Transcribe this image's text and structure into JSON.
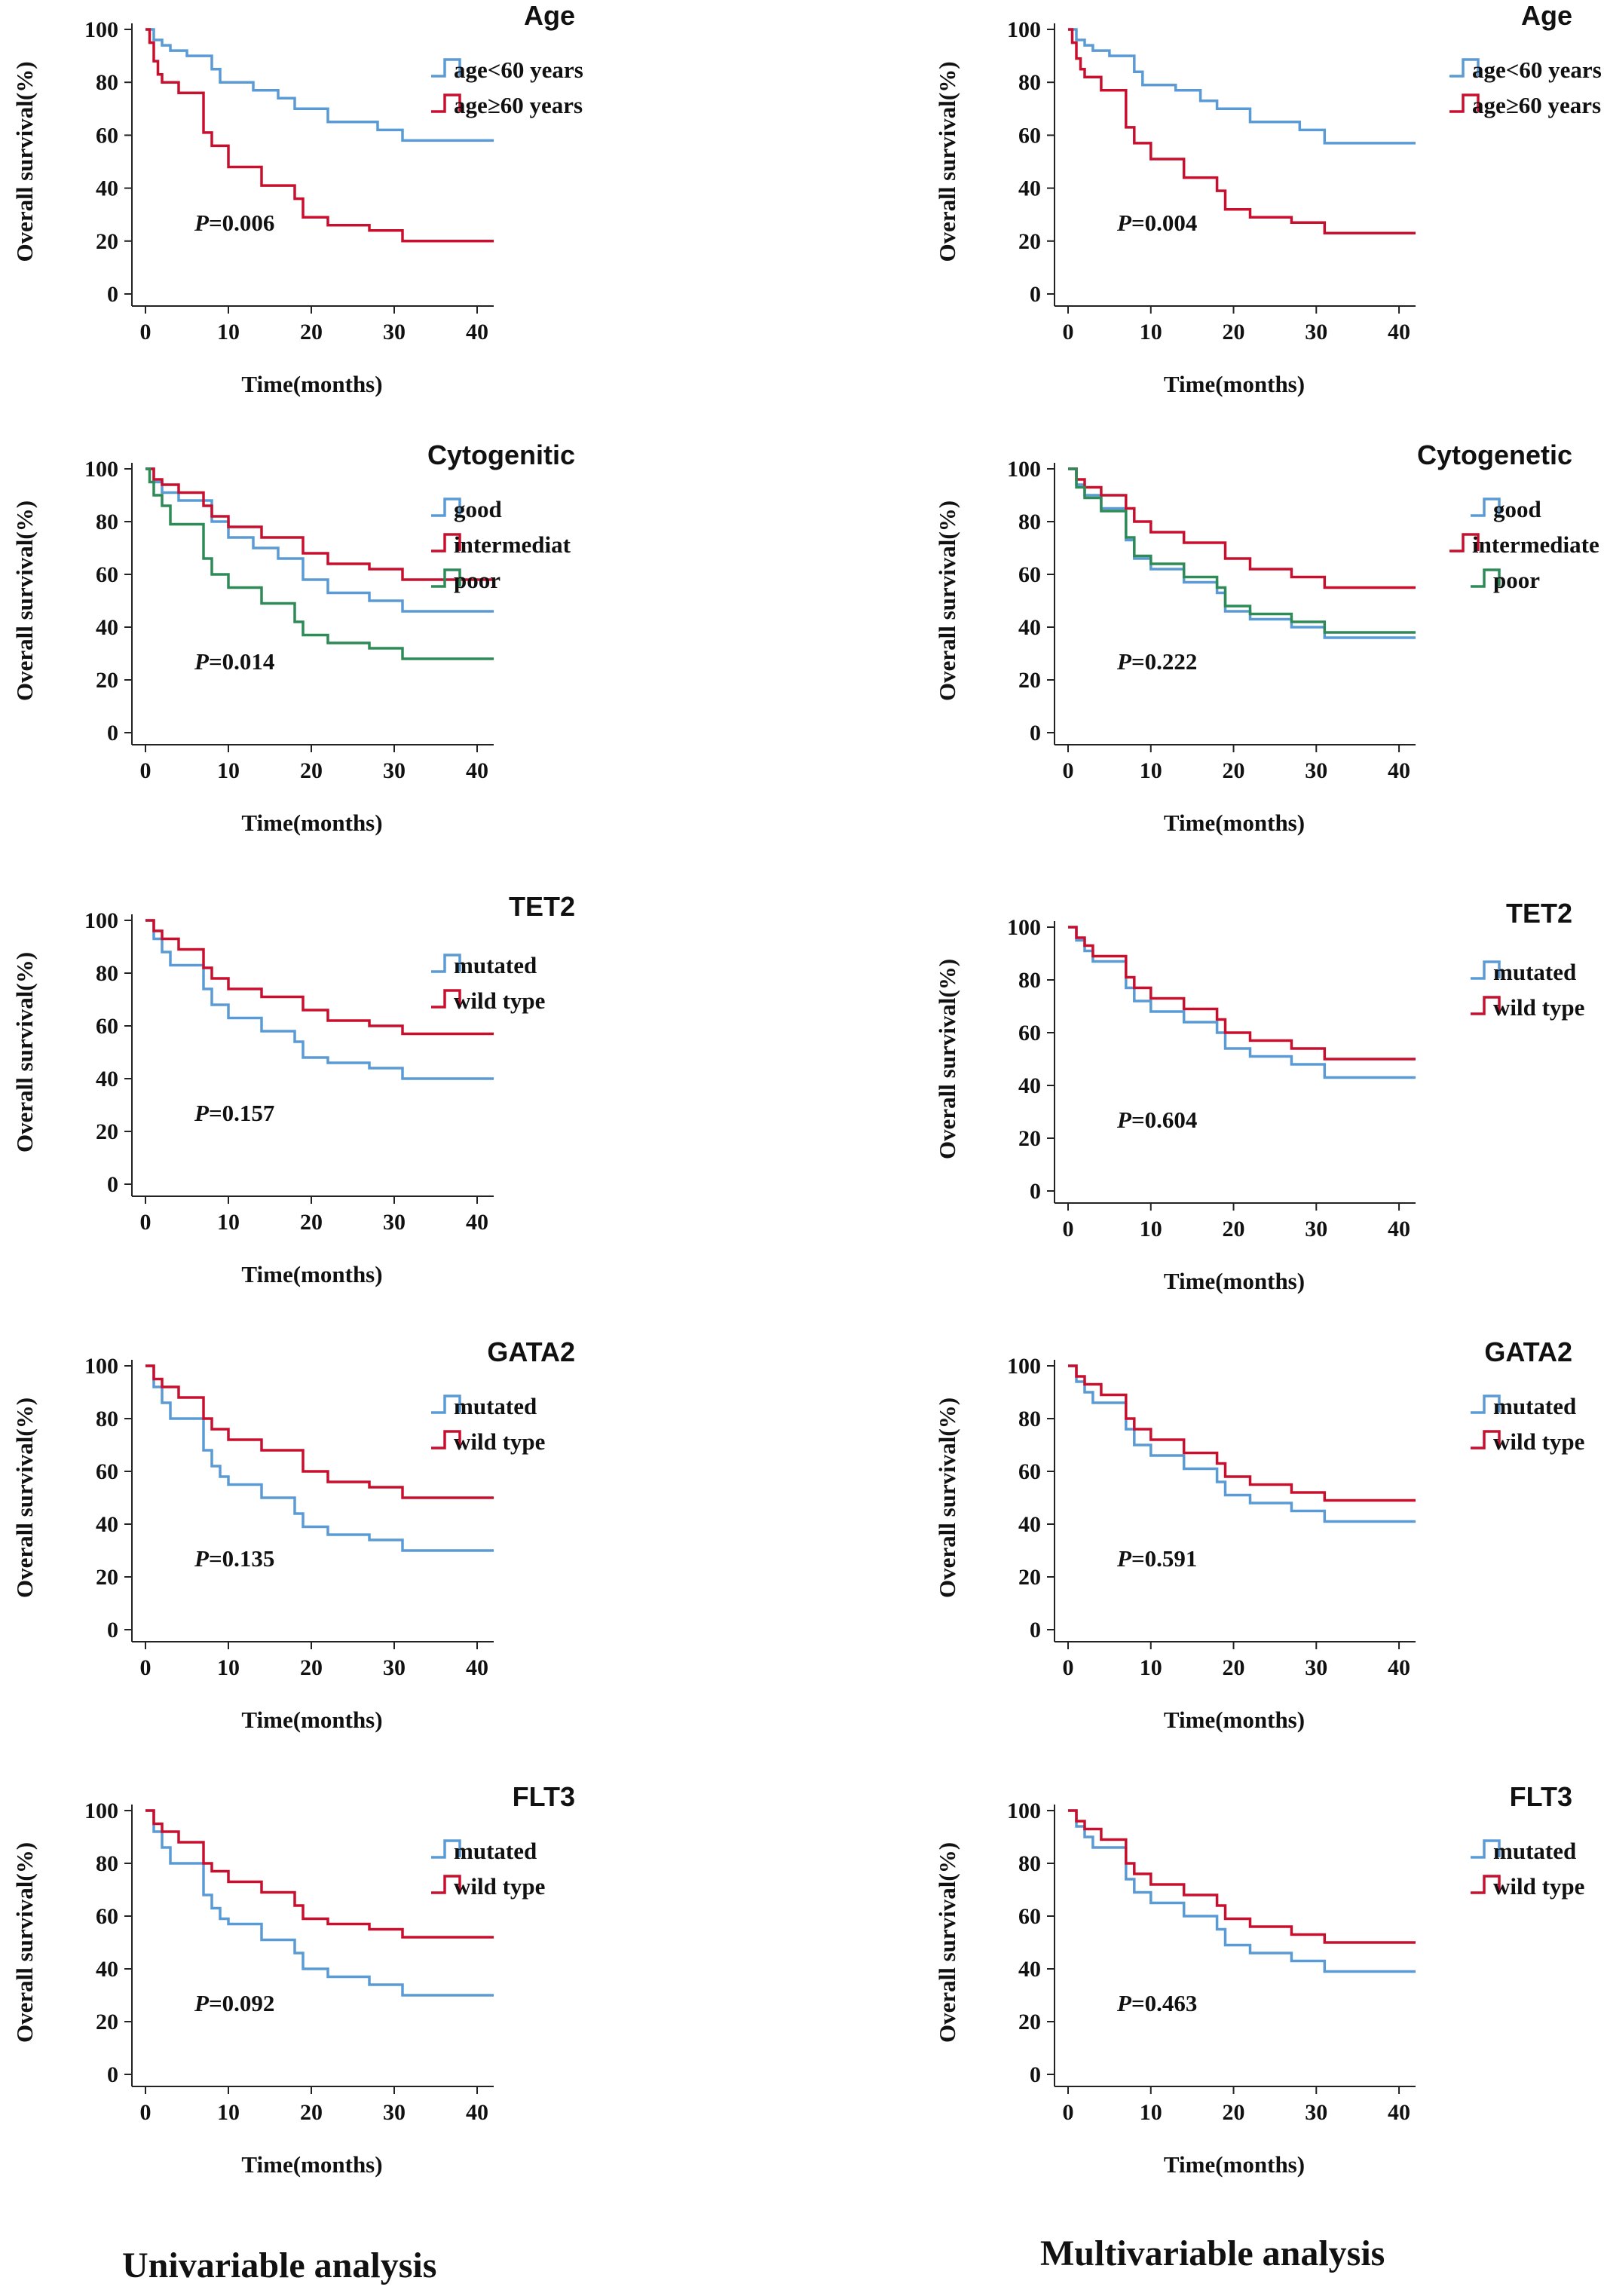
{
  "column_titles": {
    "left": "Univariable analysis",
    "right": "Multivariable analysis"
  },
  "colors": {
    "blue": "#5B9BD5",
    "red": "#C8102E",
    "green": "#2E8B57",
    "axis": "#222222"
  },
  "chart_data": [
    {
      "type": "line",
      "panel": "univariable-age",
      "title": "Age",
      "xlabel": "Time(months)",
      "ylabel": "Overall survival(%)",
      "xlim": [
        0,
        42
      ],
      "ylim": [
        0,
        100
      ],
      "xticks": [
        0,
        10,
        20,
        30,
        40
      ],
      "yticks": [
        0,
        20,
        40,
        60,
        80,
        100
      ],
      "grid": false,
      "legend": "top-right",
      "p_label": "P",
      "p_value": "=0.006",
      "series": [
        {
          "name": "age<60 years",
          "color": "blue",
          "x": [
            0,
            1,
            2,
            3,
            5,
            8,
            9,
            13,
            16,
            18,
            22,
            28,
            31,
            42
          ],
          "y": [
            100,
            96,
            94,
            92,
            90,
            85,
            80,
            77,
            74,
            70,
            65,
            62,
            58,
            58
          ]
        },
        {
          "name": "age≥60 years",
          "color": "red",
          "x": [
            0,
            0.5,
            1,
            1.5,
            2,
            4,
            7,
            8,
            10,
            14,
            18,
            19,
            22,
            27,
            31,
            42
          ],
          "y": [
            100,
            95,
            88,
            83,
            80,
            76,
            61,
            56,
            48,
            41,
            36,
            29,
            26,
            24,
            20,
            20
          ]
        }
      ]
    },
    {
      "type": "line",
      "panel": "multivariable-age",
      "title": "Age",
      "xlabel": "Time(months)",
      "ylabel": "Overall survival(%)",
      "xlim": [
        0,
        42
      ],
      "ylim": [
        0,
        100
      ],
      "xticks": [
        0,
        10,
        20,
        30,
        40
      ],
      "yticks": [
        0,
        20,
        40,
        60,
        80,
        100
      ],
      "grid": false,
      "legend": "top-right",
      "p_label": "P",
      "p_value": "=0.004",
      "series": [
        {
          "name": "age<60 years",
          "color": "blue",
          "x": [
            0,
            1,
            2,
            3,
            5,
            8,
            9,
            13,
            16,
            18,
            22,
            28,
            31,
            42
          ],
          "y": [
            100,
            96,
            94,
            92,
            90,
            84,
            79,
            77,
            73,
            70,
            65,
            62,
            57,
            57
          ]
        },
        {
          "name": "age≥60 years",
          "color": "red",
          "x": [
            0,
            0.5,
            1,
            1.5,
            2,
            4,
            7,
            8,
            10,
            14,
            18,
            19,
            22,
            27,
            31,
            42
          ],
          "y": [
            100,
            95,
            89,
            85,
            82,
            77,
            63,
            57,
            51,
            44,
            39,
            32,
            29,
            27,
            23,
            23
          ]
        }
      ]
    },
    {
      "type": "line",
      "panel": "univariable-cytogenetic",
      "title": "Cytogenitic",
      "xlabel": "Time(months)",
      "ylabel": "Overall survival(%)",
      "xlim": [
        0,
        42
      ],
      "ylim": [
        0,
        100
      ],
      "xticks": [
        0,
        10,
        20,
        30,
        40
      ],
      "yticks": [
        0,
        20,
        40,
        60,
        80,
        100
      ],
      "grid": false,
      "legend": "top-right",
      "p_label": "P",
      "p_value": "=0.014",
      "series": [
        {
          "name": "good",
          "color": "blue",
          "x": [
            0,
            1,
            2,
            4,
            8,
            10,
            13,
            16,
            19,
            22,
            27,
            31,
            42
          ],
          "y": [
            100,
            95,
            91,
            88,
            80,
            74,
            70,
            66,
            58,
            53,
            50,
            46,
            46
          ]
        },
        {
          "name": "intermediat",
          "color": "red",
          "x": [
            0,
            1,
            2,
            4,
            7,
            8,
            10,
            14,
            19,
            22,
            27,
            31,
            42
          ],
          "y": [
            100,
            96,
            94,
            91,
            86,
            82,
            78,
            74,
            68,
            64,
            62,
            58,
            58
          ]
        },
        {
          "name": "poor",
          "color": "green",
          "x": [
            0,
            0.5,
            1,
            2,
            3,
            7,
            8,
            10,
            14,
            18,
            19,
            22,
            27,
            31,
            42
          ],
          "y": [
            100,
            95,
            90,
            86,
            79,
            66,
            60,
            55,
            49,
            42,
            37,
            34,
            32,
            28,
            28
          ]
        }
      ]
    },
    {
      "type": "line",
      "panel": "multivariable-cytogenetic",
      "title": "Cytogenetic",
      "xlabel": "Time(months)",
      "ylabel": "Overall survival(%)",
      "xlim": [
        0,
        42
      ],
      "ylim": [
        0,
        100
      ],
      "xticks": [
        0,
        10,
        20,
        30,
        40
      ],
      "yticks": [
        0,
        20,
        40,
        60,
        80,
        100
      ],
      "grid": false,
      "legend": "top-right",
      "p_label": "P",
      "p_value": "=0.222",
      "series": [
        {
          "name": "good",
          "color": "blue",
          "x": [
            0,
            1,
            2,
            4,
            7,
            8,
            10,
            14,
            18,
            19,
            22,
            27,
            31,
            42
          ],
          "y": [
            100,
            94,
            90,
            85,
            73,
            66,
            62,
            57,
            53,
            46,
            43,
            40,
            36,
            36
          ]
        },
        {
          "name": "intermediate",
          "color": "red",
          "x": [
            0,
            1,
            2,
            4,
            7,
            8,
            10,
            14,
            19,
            22,
            27,
            31,
            42
          ],
          "y": [
            100,
            96,
            93,
            90,
            85,
            80,
            76,
            72,
            66,
            62,
            59,
            55,
            55
          ]
        },
        {
          "name": "poor",
          "color": "green",
          "x": [
            0,
            1,
            2,
            4,
            7,
            8,
            10,
            14,
            18,
            19,
            22,
            27,
            31,
            42
          ],
          "y": [
            100,
            93,
            89,
            84,
            74,
            67,
            64,
            59,
            55,
            48,
            45,
            42,
            38,
            38
          ]
        }
      ]
    },
    {
      "type": "line",
      "panel": "univariable-tet2",
      "title": "TET2",
      "xlabel": "Time(months)",
      "ylabel": "Overall survival(%)",
      "xlim": [
        0,
        42
      ],
      "ylim": [
        0,
        100
      ],
      "xticks": [
        0,
        10,
        20,
        30,
        40
      ],
      "yticks": [
        0,
        20,
        40,
        60,
        80,
        100
      ],
      "grid": false,
      "legend": "top-right",
      "p_label": "P",
      "p_value": "=0.157",
      "series": [
        {
          "name": "mutated",
          "color": "blue",
          "x": [
            0,
            1,
            2,
            3,
            7,
            8,
            10,
            14,
            18,
            19,
            22,
            27,
            31,
            42
          ],
          "y": [
            100,
            93,
            88,
            83,
            74,
            68,
            63,
            58,
            54,
            48,
            46,
            44,
            40,
            40
          ]
        },
        {
          "name": "wild type",
          "color": "red",
          "x": [
            0,
            1,
            2,
            4,
            7,
            8,
            10,
            14,
            19,
            22,
            27,
            31,
            42
          ],
          "y": [
            100,
            96,
            93,
            89,
            82,
            78,
            74,
            71,
            66,
            62,
            60,
            57,
            57
          ]
        }
      ]
    },
    {
      "type": "line",
      "panel": "multivariable-tet2",
      "title": "TET2",
      "xlabel": "Time(months)",
      "ylabel": "Overall survival(%)",
      "xlim": [
        0,
        42
      ],
      "ylim": [
        0,
        100
      ],
      "xticks": [
        0,
        10,
        20,
        30,
        40
      ],
      "yticks": [
        0,
        20,
        40,
        60,
        80,
        100
      ],
      "grid": false,
      "legend": "top-right",
      "p_label": "P",
      "p_value": "=0.604",
      "series": [
        {
          "name": "mutated",
          "color": "blue",
          "x": [
            0,
            1,
            2,
            3,
            7,
            8,
            10,
            14,
            18,
            19,
            22,
            27,
            31,
            42
          ],
          "y": [
            100,
            95,
            91,
            87,
            77,
            72,
            68,
            64,
            60,
            54,
            51,
            48,
            43,
            43
          ]
        },
        {
          "name": "wild type",
          "color": "red",
          "x": [
            0,
            1,
            2,
            3,
            7,
            8,
            10,
            14,
            18,
            19,
            22,
            27,
            31,
            42
          ],
          "y": [
            100,
            96,
            93,
            89,
            81,
            77,
            73,
            69,
            65,
            60,
            57,
            54,
            50,
            50
          ]
        }
      ]
    },
    {
      "type": "line",
      "panel": "univariable-gata2",
      "title": "GATA2",
      "xlabel": "Time(months)",
      "ylabel": "Overall survival(%)",
      "xlim": [
        0,
        42
      ],
      "ylim": [
        0,
        100
      ],
      "xticks": [
        0,
        10,
        20,
        30,
        40
      ],
      "yticks": [
        0,
        20,
        40,
        60,
        80,
        100
      ],
      "grid": false,
      "legend": "top-right",
      "p_label": "P",
      "p_value": "=0.135",
      "series": [
        {
          "name": "mutated",
          "color": "blue",
          "x": [
            0,
            1,
            2,
            3,
            7,
            8,
            9,
            10,
            14,
            18,
            19,
            22,
            27,
            31,
            42
          ],
          "y": [
            100,
            92,
            86,
            80,
            68,
            62,
            58,
            55,
            50,
            44,
            39,
            36,
            34,
            30,
            30
          ]
        },
        {
          "name": "wild type",
          "color": "red",
          "x": [
            0,
            1,
            2,
            4,
            7,
            8,
            10,
            14,
            19,
            22,
            27,
            31,
            42
          ],
          "y": [
            100,
            95,
            92,
            88,
            80,
            76,
            72,
            68,
            60,
            56,
            54,
            50,
            50
          ]
        }
      ]
    },
    {
      "type": "line",
      "panel": "multivariable-gata2",
      "title": "GATA2",
      "xlabel": "Time(months)",
      "ylabel": "Overall survival(%)",
      "xlim": [
        0,
        42
      ],
      "ylim": [
        0,
        100
      ],
      "xticks": [
        0,
        10,
        20,
        30,
        40
      ],
      "yticks": [
        0,
        20,
        40,
        60,
        80,
        100
      ],
      "grid": false,
      "legend": "top-right",
      "p_label": "P",
      "p_value": "=0.591",
      "series": [
        {
          "name": "mutated",
          "color": "blue",
          "x": [
            0,
            1,
            2,
            3,
            7,
            8,
            10,
            14,
            18,
            19,
            22,
            27,
            31,
            42
          ],
          "y": [
            100,
            94,
            90,
            86,
            76,
            70,
            66,
            61,
            56,
            51,
            48,
            45,
            41,
            41
          ]
        },
        {
          "name": "wild type",
          "color": "red",
          "x": [
            0,
            1,
            2,
            4,
            7,
            8,
            10,
            14,
            18,
            19,
            22,
            27,
            31,
            42
          ],
          "y": [
            100,
            96,
            93,
            89,
            80,
            76,
            72,
            67,
            63,
            58,
            55,
            52,
            49,
            49
          ]
        }
      ]
    },
    {
      "type": "line",
      "panel": "univariable-flt3",
      "title": "FLT3",
      "xlabel": "Time(months)",
      "ylabel": "Overall survival(%)",
      "xlim": [
        0,
        42
      ],
      "ylim": [
        0,
        100
      ],
      "xticks": [
        0,
        10,
        20,
        30,
        40
      ],
      "yticks": [
        0,
        20,
        40,
        60,
        80,
        100
      ],
      "grid": false,
      "legend": "top-right",
      "p_label": "P",
      "p_value": "=0.092",
      "series": [
        {
          "name": "mutated",
          "color": "blue",
          "x": [
            0,
            1,
            2,
            3,
            7,
            8,
            9,
            10,
            14,
            18,
            19,
            22,
            27,
            31,
            42
          ],
          "y": [
            100,
            92,
            86,
            80,
            68,
            63,
            59,
            57,
            51,
            46,
            40,
            37,
            34,
            30,
            30
          ]
        },
        {
          "name": "wild type",
          "color": "red",
          "x": [
            0,
            1,
            2,
            4,
            7,
            8,
            10,
            14,
            18,
            19,
            22,
            27,
            31,
            42
          ],
          "y": [
            100,
            95,
            92,
            88,
            80,
            77,
            73,
            69,
            64,
            59,
            57,
            55,
            52,
            52
          ]
        }
      ]
    },
    {
      "type": "line",
      "panel": "multivariable-flt3",
      "title": "FLT3",
      "xlabel": "Time(months)",
      "ylabel": "Overall survival(%)",
      "xlim": [
        0,
        42
      ],
      "ylim": [
        0,
        100
      ],
      "xticks": [
        0,
        10,
        20,
        30,
        40
      ],
      "yticks": [
        0,
        20,
        40,
        60,
        80,
        100
      ],
      "grid": false,
      "legend": "top-right",
      "p_label": "P",
      "p_value": "=0.463",
      "series": [
        {
          "name": "mutated",
          "color": "blue",
          "x": [
            0,
            1,
            2,
            3,
            7,
            8,
            10,
            14,
            18,
            19,
            22,
            27,
            31,
            42
          ],
          "y": [
            100,
            94,
            90,
            86,
            74,
            69,
            65,
            60,
            55,
            49,
            46,
            43,
            39,
            39
          ]
        },
        {
          "name": "wild type",
          "color": "red",
          "x": [
            0,
            1,
            2,
            4,
            7,
            8,
            10,
            14,
            18,
            19,
            22,
            27,
            31,
            42
          ],
          "y": [
            100,
            96,
            93,
            89,
            80,
            76,
            72,
            68,
            64,
            59,
            56,
            53,
            50,
            50
          ]
        }
      ]
    }
  ]
}
